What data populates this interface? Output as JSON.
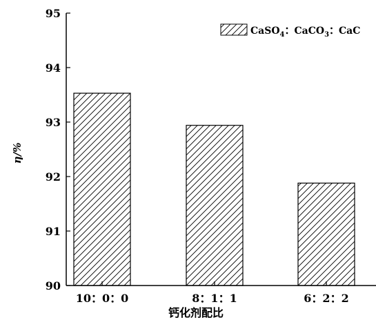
{
  "chart_data": {
    "type": "bar",
    "categories": [
      "10：0：0",
      "8：1：1",
      "6：2：2"
    ],
    "series": [
      {
        "name": "CaSO4：CaCO3：CaC",
        "name_parts": [
          "CaSO",
          "4",
          "：CaCO",
          "3",
          "：CaC"
        ],
        "values": [
          93.53,
          92.94,
          91.88
        ]
      }
    ],
    "title": "",
    "xlabel": "钙化剂配比",
    "ylabel": "η/%",
    "ylim": [
      90,
      95
    ],
    "yticks": [
      90,
      91,
      92,
      93,
      94,
      95
    ],
    "grid": false,
    "legend_position": "top-right",
    "bar_fill": "diagonal-hatch",
    "colors": {
      "stroke": "#000000",
      "background": "#ffffff"
    }
  }
}
